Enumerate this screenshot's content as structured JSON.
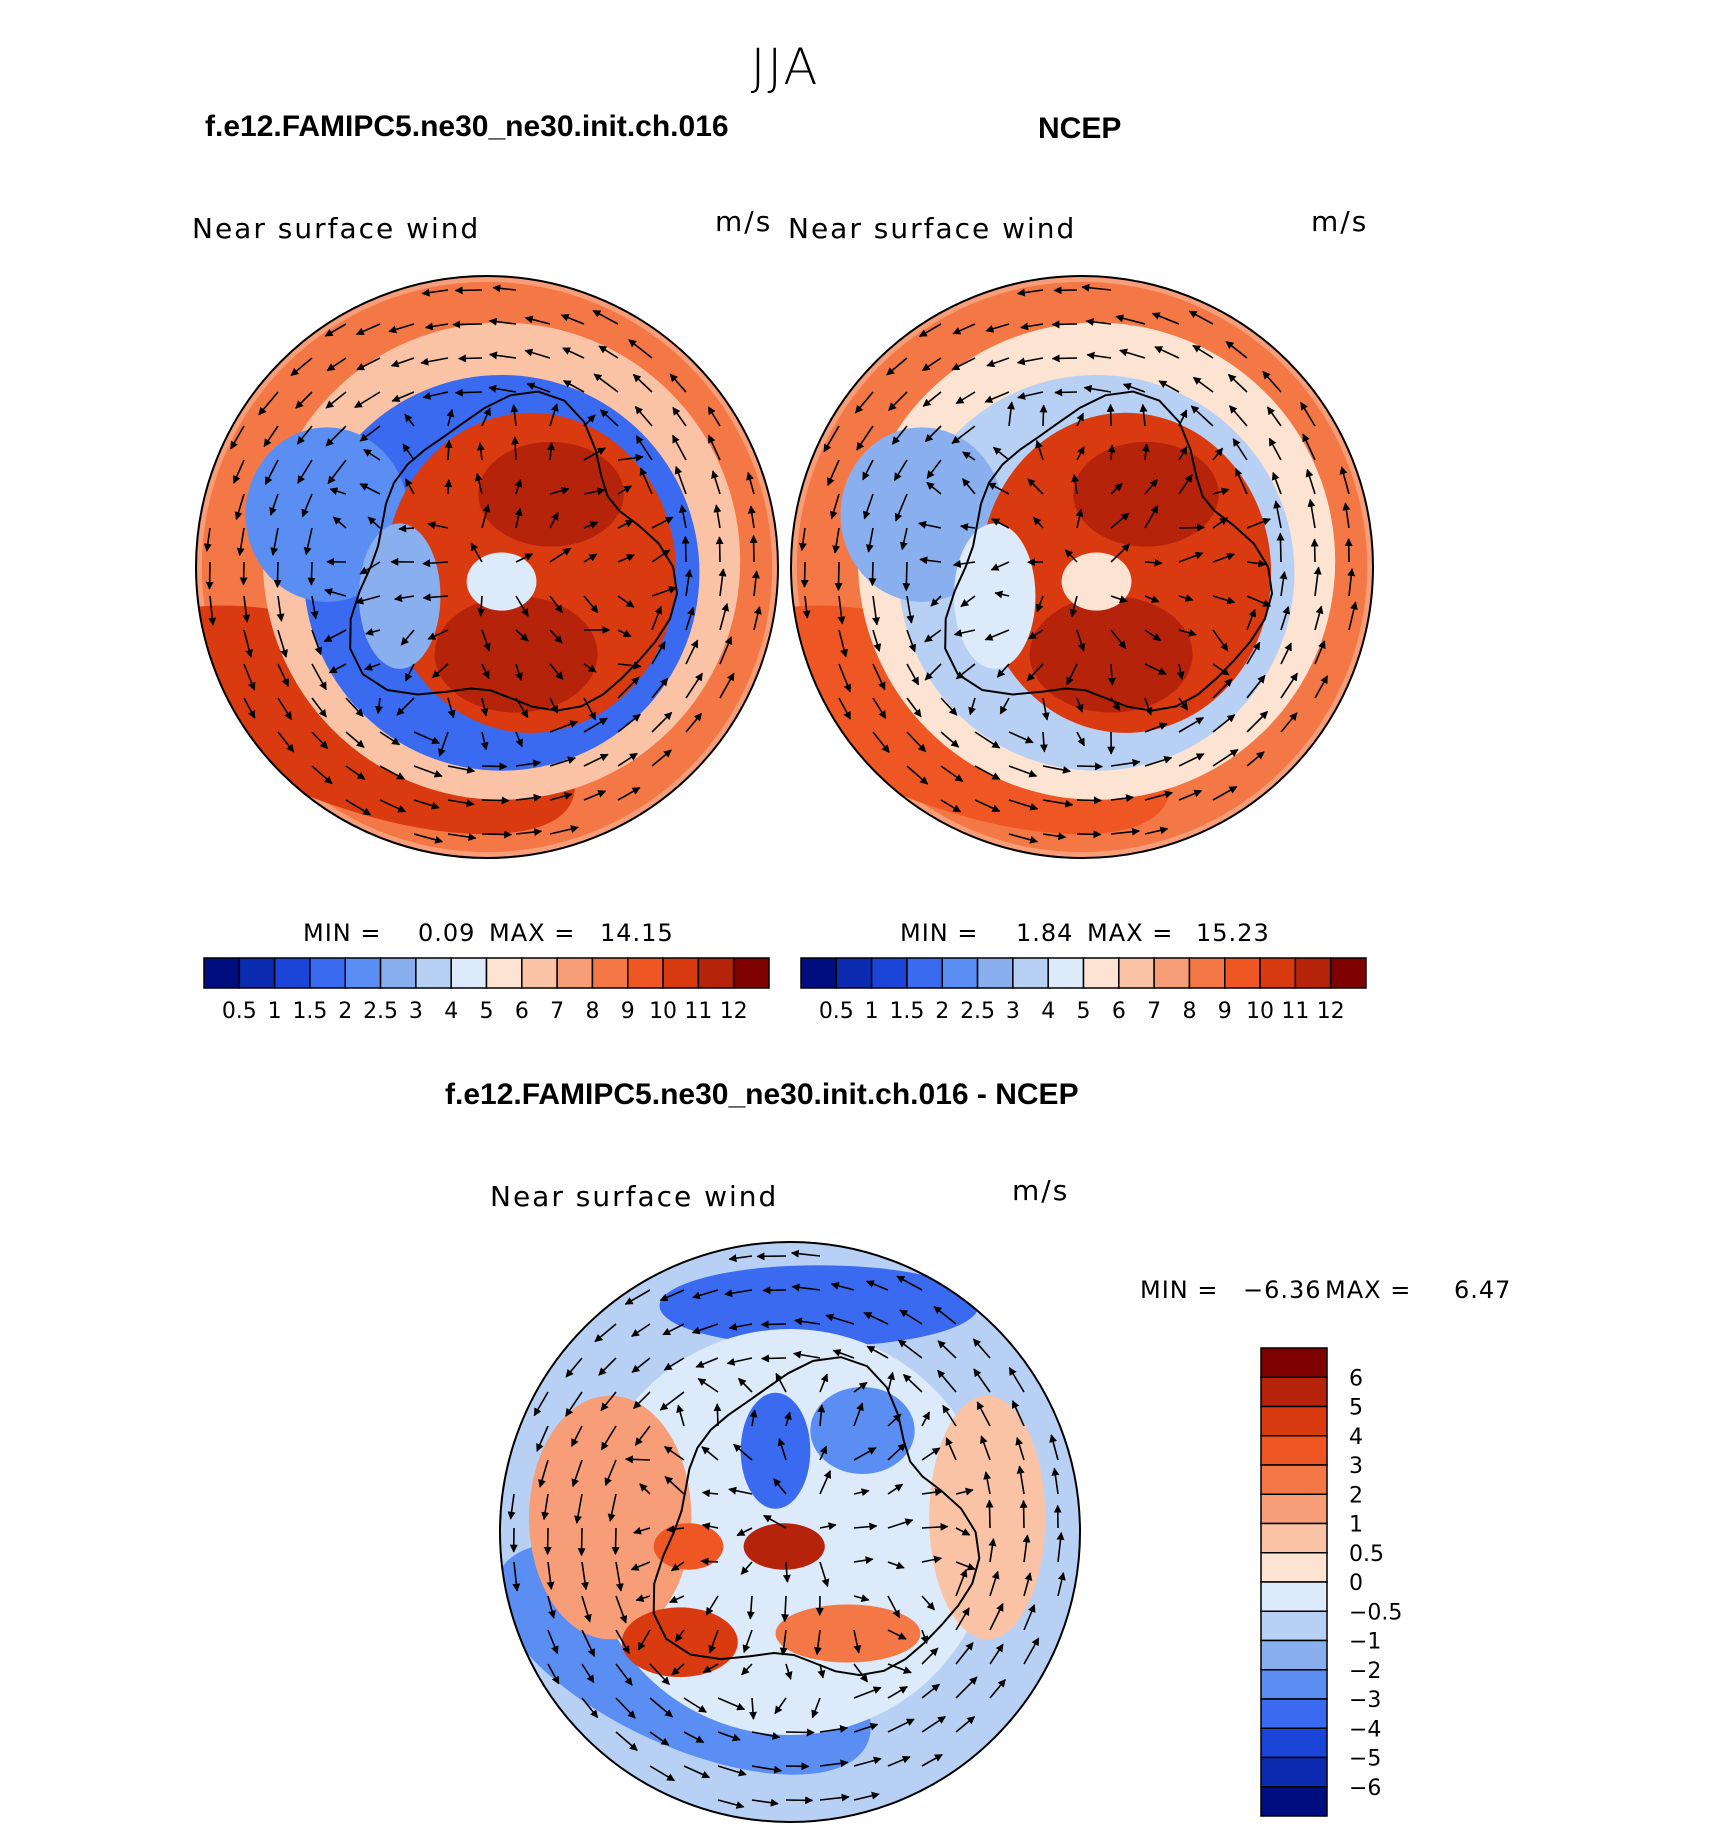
{
  "season": "JJA",
  "panels": {
    "model": {
      "title": "f.e12.FAMIPC5.ne30_ne30.init.ch.016",
      "variable": "Near surface wind",
      "units": "m/s",
      "min_label": "MIN =",
      "min_value": "0.09",
      "max_label": "MAX =",
      "max_value": "14.15"
    },
    "obs": {
      "title": "NCEP",
      "variable": "Near surface wind",
      "units": "m/s",
      "min_label": "MIN =",
      "min_value": "1.84",
      "max_label": "MAX =",
      "max_value": "15.23"
    },
    "diff": {
      "title": "f.e12.FAMIPC5.ne30_ne30.init.ch.016 - NCEP",
      "variable": "Near surface wind",
      "units": "m/s",
      "min_label": "MIN =",
      "min_value": "−6.36",
      "max_label": "MAX =",
      "max_value": "6.47"
    }
  },
  "chart_data": [
    {
      "type": "heatmap",
      "projection": "south-polar-stereographic",
      "title": "f.e12.FAMIPC5.ne30_ne30.init.ch.016",
      "field": "Near surface wind",
      "units": "m/s",
      "min": 0.09,
      "max": 14.15,
      "levels": [
        "0.5",
        "1",
        "1.5",
        "2",
        "2.5",
        "3",
        "4",
        "5",
        "6",
        "7",
        "8",
        "9",
        "10",
        "11",
        "12"
      ],
      "colors": [
        "#000d7e",
        "#0b2bb0",
        "#1a45d8",
        "#3a6af0",
        "#5b8ef3",
        "#8aafef",
        "#b8d0f4",
        "#dceaf9",
        "#fde4d2",
        "#fbc3a6",
        "#f79d77",
        "#f47746",
        "#ee5623",
        "#d93a10",
        "#b5230b",
        "#7f0000"
      ]
    },
    {
      "type": "heatmap",
      "projection": "south-polar-stereographic",
      "title": "NCEP",
      "field": "Near surface wind",
      "units": "m/s",
      "min": 1.84,
      "max": 15.23,
      "levels": [
        "0.5",
        "1",
        "1.5",
        "2",
        "2.5",
        "3",
        "4",
        "5",
        "6",
        "7",
        "8",
        "9",
        "10",
        "11",
        "12"
      ],
      "colors": [
        "#000d7e",
        "#0b2bb0",
        "#1a45d8",
        "#3a6af0",
        "#5b8ef3",
        "#8aafef",
        "#b8d0f4",
        "#dceaf9",
        "#fde4d2",
        "#fbc3a6",
        "#f79d77",
        "#f47746",
        "#ee5623",
        "#d93a10",
        "#b5230b",
        "#7f0000"
      ]
    },
    {
      "type": "heatmap",
      "projection": "south-polar-stereographic",
      "title": "f.e12.FAMIPC5.ne30_ne30.init.ch.016 - NCEP",
      "field": "Near surface wind",
      "units": "m/s",
      "min": -6.36,
      "max": 6.47,
      "levels": [
        "6",
        "5",
        "4",
        "3",
        "2",
        "1",
        "0.5",
        "0",
        "−0.5",
        "−1",
        "−2",
        "−3",
        "−4",
        "−5",
        "−6"
      ],
      "colors": [
        "#7f0000",
        "#b5230b",
        "#d93a10",
        "#ee5623",
        "#f47746",
        "#f79d77",
        "#fbc3a6",
        "#fde4d2",
        "#dceaf9",
        "#b8d0f4",
        "#8aafef",
        "#5b8ef3",
        "#3a6af0",
        "#1a45d8",
        "#0b2bb0",
        "#000d7e"
      ]
    }
  ]
}
